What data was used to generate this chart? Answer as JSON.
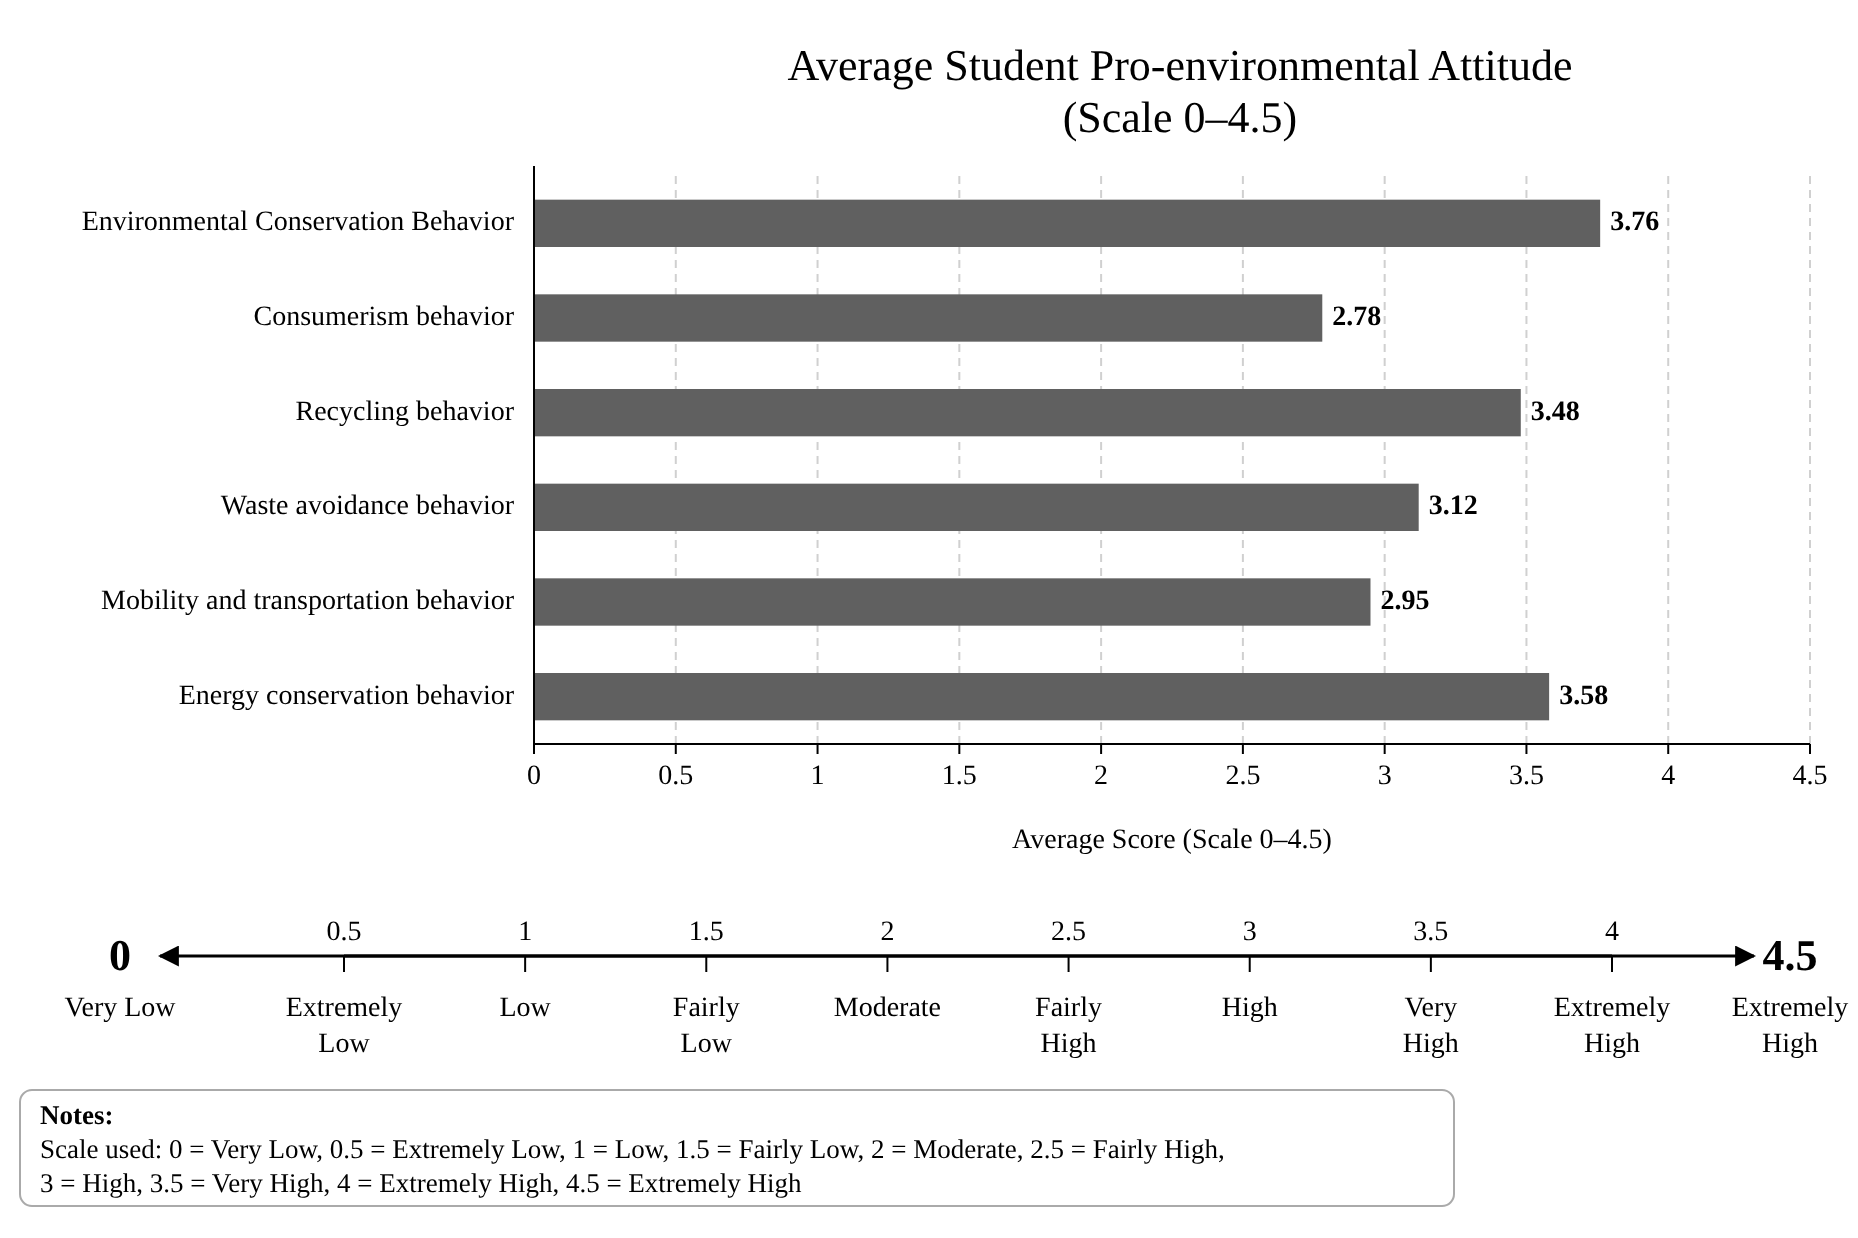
{
  "chart_data": {
    "type": "bar",
    "title": "Average Student Pro-environmental Attitude\n(Scale 0–4.5)",
    "orientation": "horizontal",
    "categories": [
      "Environmental Conservation Behavior",
      "Consumerism behavior",
      "Recycling behavior",
      "Waste avoidance behavior",
      "Mobility and transportation behavior",
      "Energy conservation behavior"
    ],
    "values": [
      3.76,
      2.78,
      3.48,
      3.12,
      2.95,
      3.58
    ],
    "color": "#606060",
    "data_labels": true,
    "xlabel": "Average Score (Scale 0–4.5)",
    "xlim": [
      0,
      4.5
    ],
    "xticks": [
      0,
      0.5,
      1,
      1.5,
      2,
      2.5,
      3,
      3.5,
      4,
      4.5
    ],
    "grid": "x",
    "x2lim": [
      0.5,
      4
    ],
    "x2ticks": [
      0.5,
      1,
      1.5,
      2,
      2.5,
      3,
      3.5,
      4
    ],
    "annotations": [
      "0",
      "4.5",
      "Very Low",
      "Extremely\nLow",
      "Low",
      "Fairly\nLow",
      "Moderate",
      "Fairly\nHigh",
      "High",
      "Very\nHigh",
      "Extremely\nHigh",
      "Extremely\nHigh",
      "Notes:\nScale used: 0 = Very Low, 0.5 = Extremely Low, 1 = Low, 1.5 = Fairly Low, 2 = Moderate, 2.5 = Fairly High,\n3 = High, 3.5 = Very High, 4 = Extremely High, 4.5 = Extremely High"
    ]
  }
}
